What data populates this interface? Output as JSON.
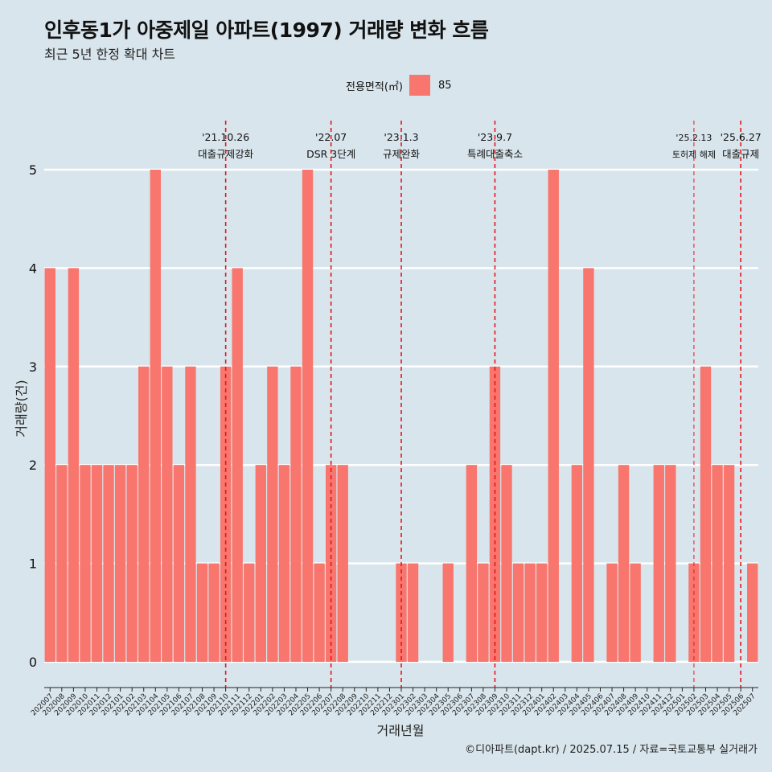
{
  "title": "인후동1가 아중제일 아파트(1997) 거래량 변화 흐름",
  "subtitle": "최근 5년 한정 확대 차트",
  "legend": {
    "title": "전용면적(㎡)",
    "label": "85",
    "color": "#f8766d"
  },
  "caption": "©디아파트(dapt.kr) / 2025.07.15 / 자료=국토교통부 실거래가",
  "chart_data": {
    "type": "bar",
    "xlabel": "거래년월",
    "ylabel": "거래량(건)",
    "ylim": [
      0,
      5
    ],
    "yticks": [
      0,
      1,
      2,
      3,
      4,
      5
    ],
    "bar_color": "#f8766d",
    "categories": [
      "202007",
      "202008",
      "202009",
      "202010",
      "202011",
      "202012",
      "202101",
      "202102",
      "202103",
      "202104",
      "202105",
      "202106",
      "202107",
      "202108",
      "202109",
      "202110",
      "202111",
      "202112",
      "202201",
      "202202",
      "202203",
      "202204",
      "202205",
      "202206",
      "202207",
      "202208",
      "202209",
      "202210",
      "202211",
      "202212",
      "202301",
      "202302",
      "202303",
      "202304",
      "202305",
      "202306",
      "202307",
      "202308",
      "202309",
      "202310",
      "202311",
      "202312",
      "202401",
      "202402",
      "202403",
      "202404",
      "202405",
      "202406",
      "202407",
      "202408",
      "202409",
      "202410",
      "202411",
      "202412",
      "202501",
      "202502",
      "202503",
      "202504",
      "202505",
      "202506",
      "202507"
    ],
    "values": [
      4,
      2,
      4,
      2,
      2,
      2,
      2,
      2,
      3,
      5,
      3,
      2,
      3,
      1,
      1,
      3,
      4,
      1,
      2,
      3,
      2,
      3,
      5,
      1,
      2,
      2,
      0,
      0,
      0,
      0,
      1,
      1,
      0,
      0,
      1,
      0,
      2,
      1,
      3,
      2,
      1,
      1,
      1,
      5,
      0,
      2,
      4,
      0,
      1,
      2,
      1,
      0,
      2,
      2,
      0,
      1,
      3,
      2,
      2,
      0,
      1
    ],
    "annotations": [
      {
        "date": "'21.10.26",
        "label": "대출규제강화",
        "at": "202110",
        "emphasis": true
      },
      {
        "date": "'22.07",
        "label": "DSR 3단계",
        "at": "202207",
        "emphasis": true
      },
      {
        "date": "'23.1.3",
        "label": "규제완화",
        "at": "202301",
        "emphasis": true
      },
      {
        "date": "'23.9.7",
        "label": "특례대출축소",
        "at": "202309",
        "emphasis": true
      },
      {
        "date": "'25.2.13",
        "label": "토허제 해제",
        "at": "202502",
        "emphasis": false
      },
      {
        "date": "'25.6.27",
        "label": "대출규제",
        "at": "202506",
        "emphasis": true
      }
    ]
  }
}
